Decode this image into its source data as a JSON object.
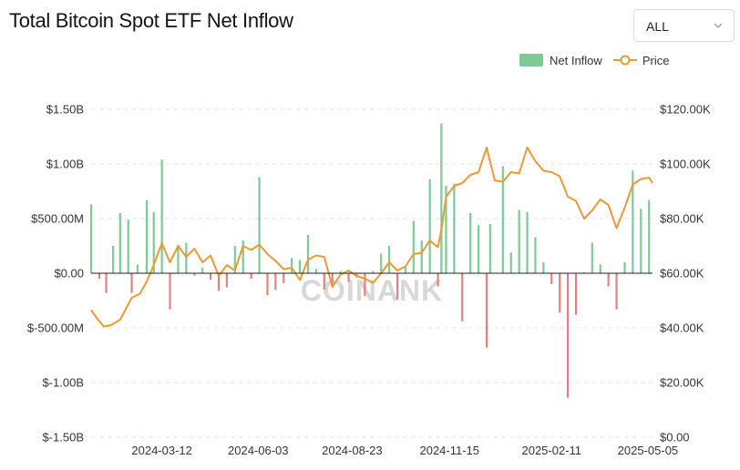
{
  "header": {
    "title": "Total Bitcoin Spot ETF Net Inflow",
    "range_select": {
      "value": "ALL",
      "icon": "chevron-down-icon"
    }
  },
  "legend": [
    {
      "label": "Net Inflow",
      "color": "#7ccb96"
    },
    {
      "label": "Price",
      "color": "#ea9a33"
    }
  ],
  "watermark": "COINANK",
  "colors": {
    "inflow_positive": "#7ccb96",
    "inflow_negative": "#e38080",
    "price_line": "#ea9a33",
    "grid": "#e5e5e5"
  },
  "chart_data": {
    "type": "bar",
    "title": "Total Bitcoin Spot ETF Net Inflow",
    "x_tick_labels": [
      "2024-03-12",
      "2024-06-03",
      "2024-08-23",
      "2024-11-15",
      "2025-02-11",
      "2025-05-05"
    ],
    "x_range": [
      "2024-01-11",
      "2025-05-09"
    ],
    "left_axis": {
      "tick_labels": [
        "$1.50B",
        "$1.00B",
        "$500.00M",
        "$0.00",
        "$-500.00M",
        "$-1.00B",
        "$-1.50B"
      ],
      "ylim": [
        -1.5,
        1.5
      ],
      "unit": "USD billions"
    },
    "right_axis": {
      "tick_labels": [
        "$120.00K",
        "$100.00K",
        "$80.00K",
        "$60.00K",
        "$40.00K",
        "$20.00K",
        "$0.00"
      ],
      "ylim": [
        0,
        120
      ],
      "unit": "USD thousands"
    },
    "grid": true,
    "legend_position": "top-right",
    "series": [
      {
        "name": "Net Inflow",
        "kind": "bar",
        "unit": "USD billions",
        "points": [
          [
            "2024-01-11",
            0.63
          ],
          [
            "2024-01-18",
            -0.05
          ],
          [
            "2024-01-24",
            -0.18
          ],
          [
            "2024-01-30",
            0.25
          ],
          [
            "2024-02-05",
            0.55
          ],
          [
            "2024-02-12",
            0.49
          ],
          [
            "2024-02-15",
            -0.18
          ],
          [
            "2024-02-20",
            0.08
          ],
          [
            "2024-02-28",
            0.67
          ],
          [
            "2024-03-05",
            0.56
          ],
          [
            "2024-03-12",
            1.04
          ],
          [
            "2024-03-19",
            -0.33
          ],
          [
            "2024-03-26",
            0.26
          ],
          [
            "2024-04-02",
            0.28
          ],
          [
            "2024-04-09",
            -0.02
          ],
          [
            "2024-04-16",
            0.05
          ],
          [
            "2024-04-23",
            -0.06
          ],
          [
            "2024-04-30",
            -0.16
          ],
          [
            "2024-05-07",
            -0.13
          ],
          [
            "2024-05-14",
            0.25
          ],
          [
            "2024-05-21",
            0.3
          ],
          [
            "2024-05-28",
            -0.05
          ],
          [
            "2024-06-04",
            0.88
          ],
          [
            "2024-06-11",
            -0.2
          ],
          [
            "2024-06-18",
            -0.15
          ],
          [
            "2024-06-25",
            -0.09
          ],
          [
            "2024-07-02",
            0.14
          ],
          [
            "2024-07-09",
            0.12
          ],
          [
            "2024-07-16",
            0.35
          ],
          [
            "2024-07-23",
            0.04
          ],
          [
            "2024-07-30",
            -0.15
          ],
          [
            "2024-08-06",
            -0.1
          ],
          [
            "2024-08-13",
            0.02
          ],
          [
            "2024-08-20",
            -0.08
          ],
          [
            "2024-08-27",
            -0.04
          ],
          [
            "2024-09-03",
            -0.21
          ],
          [
            "2024-09-10",
            0.02
          ],
          [
            "2024-09-17",
            0.18
          ],
          [
            "2024-09-24",
            0.25
          ],
          [
            "2024-10-01",
            -0.24
          ],
          [
            "2024-10-08",
            0.06
          ],
          [
            "2024-10-15",
            0.48
          ],
          [
            "2024-10-22",
            0.3
          ],
          [
            "2024-10-29",
            0.86
          ],
          [
            "2024-11-05",
            -0.12
          ],
          [
            "2024-11-08",
            1.37
          ],
          [
            "2024-11-12",
            0.8
          ],
          [
            "2024-11-19",
            0.82
          ],
          [
            "2024-11-26",
            -0.44
          ],
          [
            "2024-12-03",
            0.55
          ],
          [
            "2024-12-10",
            0.44
          ],
          [
            "2024-12-17",
            -0.68
          ],
          [
            "2024-12-20",
            0.45
          ],
          [
            "2024-12-31",
            0.98
          ],
          [
            "2025-01-07",
            0.19
          ],
          [
            "2025-01-14",
            0.58
          ],
          [
            "2025-01-21",
            0.56
          ],
          [
            "2025-01-28",
            0.33
          ],
          [
            "2025-02-04",
            0.1
          ],
          [
            "2025-02-11",
            -0.1
          ],
          [
            "2025-02-18",
            -0.36
          ],
          [
            "2025-02-25",
            -1.14
          ],
          [
            "2025-03-04",
            -0.38
          ],
          [
            "2025-03-11",
            0.01
          ],
          [
            "2025-03-18",
            0.28
          ],
          [
            "2025-03-25",
            0.08
          ],
          [
            "2025-04-01",
            -0.12
          ],
          [
            "2025-04-08",
            -0.33
          ],
          [
            "2025-04-15",
            0.1
          ],
          [
            "2025-04-22",
            0.94
          ],
          [
            "2025-04-29",
            0.59
          ],
          [
            "2025-05-06",
            0.67
          ]
        ]
      },
      {
        "name": "Price",
        "kind": "line",
        "unit": "USD thousands",
        "points": [
          [
            "2024-01-11",
            46.6
          ],
          [
            "2024-01-16",
            43.5
          ],
          [
            "2024-01-22",
            40.5
          ],
          [
            "2024-01-28",
            41.0
          ],
          [
            "2024-02-05",
            43.0
          ],
          [
            "2024-02-15",
            51.0
          ],
          [
            "2024-02-22",
            52.5
          ],
          [
            "2024-02-28",
            57.0
          ],
          [
            "2024-03-05",
            63.0
          ],
          [
            "2024-03-12",
            71.0
          ],
          [
            "2024-03-19",
            64.0
          ],
          [
            "2024-03-26",
            70.0
          ],
          [
            "2024-04-02",
            66.0
          ],
          [
            "2024-04-09",
            69.0
          ],
          [
            "2024-04-16",
            64.0
          ],
          [
            "2024-04-23",
            66.5
          ],
          [
            "2024-04-30",
            59.0
          ],
          [
            "2024-05-07",
            63.0
          ],
          [
            "2024-05-14",
            61.0
          ],
          [
            "2024-05-21",
            70.0
          ],
          [
            "2024-05-28",
            68.5
          ],
          [
            "2024-06-04",
            70.5
          ],
          [
            "2024-06-11",
            67.0
          ],
          [
            "2024-06-18",
            64.5
          ],
          [
            "2024-06-25",
            61.5
          ],
          [
            "2024-07-02",
            62.0
          ],
          [
            "2024-07-09",
            57.5
          ],
          [
            "2024-07-16",
            65.0
          ],
          [
            "2024-07-23",
            66.5
          ],
          [
            "2024-07-30",
            66.0
          ],
          [
            "2024-08-06",
            55.0
          ],
          [
            "2024-08-13",
            59.5
          ],
          [
            "2024-08-20",
            61.0
          ],
          [
            "2024-08-27",
            59.0
          ],
          [
            "2024-09-03",
            58.0
          ],
          [
            "2024-09-10",
            56.5
          ],
          [
            "2024-09-17",
            60.0
          ],
          [
            "2024-09-24",
            64.0
          ],
          [
            "2024-10-01",
            61.0
          ],
          [
            "2024-10-08",
            62.5
          ],
          [
            "2024-10-15",
            67.0
          ],
          [
            "2024-10-22",
            67.5
          ],
          [
            "2024-10-29",
            72.0
          ],
          [
            "2024-11-05",
            69.5
          ],
          [
            "2024-11-08",
            76.0
          ],
          [
            "2024-11-12",
            88.0
          ],
          [
            "2024-11-19",
            92.0
          ],
          [
            "2024-11-26",
            93.0
          ],
          [
            "2024-12-03",
            96.0
          ],
          [
            "2024-12-10",
            97.0
          ],
          [
            "2024-12-17",
            106.0
          ],
          [
            "2024-12-24",
            94.0
          ],
          [
            "2024-12-31",
            93.5
          ],
          [
            "2025-01-07",
            97.0
          ],
          [
            "2025-01-14",
            96.5
          ],
          [
            "2025-01-21",
            106.0
          ],
          [
            "2025-01-28",
            101.0
          ],
          [
            "2025-02-04",
            97.5
          ],
          [
            "2025-02-11",
            97.0
          ],
          [
            "2025-02-18",
            95.5
          ],
          [
            "2025-02-25",
            88.0
          ],
          [
            "2025-03-04",
            86.5
          ],
          [
            "2025-03-11",
            80.0
          ],
          [
            "2025-03-18",
            83.0
          ],
          [
            "2025-03-25",
            87.0
          ],
          [
            "2025-04-01",
            85.0
          ],
          [
            "2025-04-08",
            76.5
          ],
          [
            "2025-04-15",
            84.0
          ],
          [
            "2025-04-22",
            92.5
          ],
          [
            "2025-04-29",
            94.5
          ],
          [
            "2025-05-06",
            95.0
          ],
          [
            "2025-05-09",
            93.0
          ]
        ]
      }
    ]
  }
}
